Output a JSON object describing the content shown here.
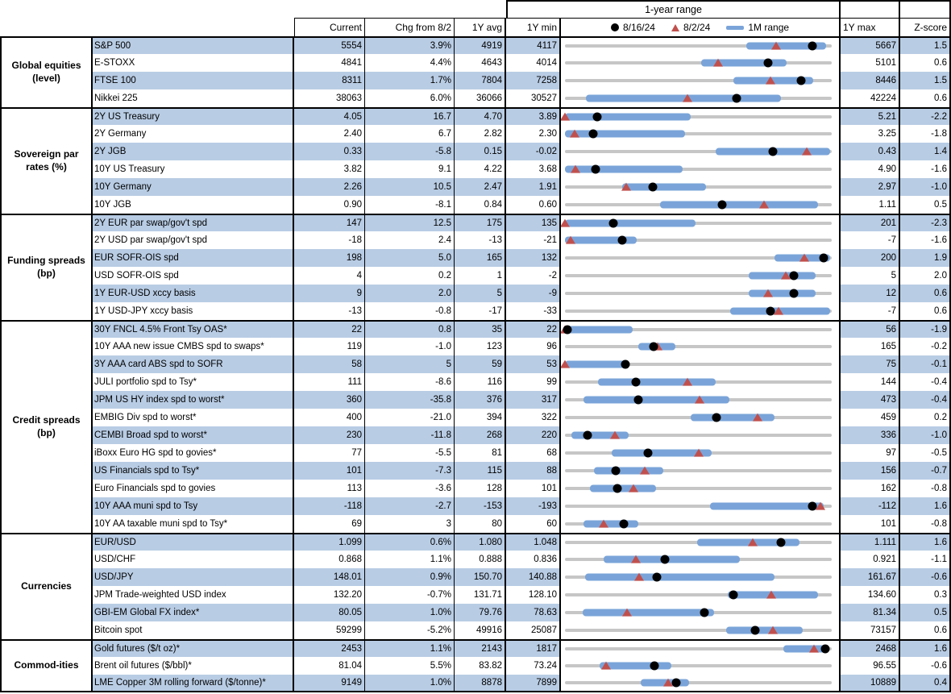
{
  "header": {
    "range_title": "1-year range",
    "columns": {
      "current": "Current",
      "chg": "Chg from 8/2",
      "avg": "1Y avg",
      "min": "1Y min",
      "max": "1Y max",
      "z": "Z-score"
    },
    "legend": [
      {
        "icon": "black-dot",
        "label": "8/16/24"
      },
      {
        "icon": "red-triangle",
        "label": "8/2/24"
      },
      {
        "icon": "blue-bar",
        "label": "1M range"
      }
    ]
  },
  "colors": {
    "stripe": "#b8cce4",
    "bar": "#7aa4d9",
    "triangle": "#c0504d",
    "dot": "#000000",
    "track": "#c6c6c6"
  },
  "chart_data": {
    "type": "table+range-strip",
    "note": "Each row: gray track spans 1Y min..1Y max; blue bar = 1M range; black dot = 8/16/24 level; red triangle = 8/2/24 level. bar/dot/tri are fractions of the 1Y range (0=min, 1=max).",
    "sections": [
      {
        "category": "Global equities (level)",
        "rows": [
          {
            "label": "S&P 500",
            "current": "5554",
            "chg": "3.9%",
            "avg": "4919",
            "min": "4117",
            "max": "5667",
            "z": "1.5",
            "bar": [
              0.68,
              0.98
            ],
            "dot": 0.927,
            "tri": 0.793
          },
          {
            "label": "E-STOXX",
            "current": "4841",
            "chg": "4.4%",
            "avg": "4643",
            "min": "4014",
            "max": "5101",
            "z": "0.6",
            "bar": [
              0.51,
              0.83
            ],
            "dot": 0.761,
            "tri": 0.573
          },
          {
            "label": "FTSE 100",
            "current": "8311",
            "chg": "1.7%",
            "avg": "7804",
            "min": "7258",
            "max": "8446",
            "z": "1.5",
            "bar": [
              0.63,
              0.93
            ],
            "dot": 0.886,
            "tri": 0.769
          },
          {
            "label": "Nikkei 225",
            "current": "38063",
            "chg": "6.0%",
            "avg": "36066",
            "min": "30527",
            "max": "42224",
            "z": "0.6",
            "bar": [
              0.08,
              0.81
            ],
            "dot": 0.644,
            "tri": 0.46
          }
        ]
      },
      {
        "category": "Sovereign par rates (%)",
        "rows": [
          {
            "label": "2Y US Treasury",
            "current": "4.05",
            "chg": "16.7",
            "avg": "4.70",
            "min": "3.89",
            "max": "5.21",
            "z": "-2.2",
            "bar": [
              0.0,
              0.47
            ],
            "dot": 0.121,
            "tri": 0.0
          },
          {
            "label": "2Y Germany",
            "current": "2.40",
            "chg": "6.7",
            "avg": "2.82",
            "min": "2.30",
            "max": "3.25",
            "z": "-1.8",
            "bar": [
              0.0,
              0.45
            ],
            "dot": 0.105,
            "tri": 0.035
          },
          {
            "label": "2Y JGB",
            "current": "0.33",
            "chg": "-5.8",
            "avg": "0.15",
            "min": "-0.02",
            "max": "0.43",
            "z": "1.4",
            "bar": [
              0.565,
              0.995
            ],
            "dot": 0.778,
            "tri": 0.907
          },
          {
            "label": "10Y US Treasury",
            "current": "3.82",
            "chg": "9.1",
            "avg": "4.22",
            "min": "3.68",
            "max": "4.90",
            "z": "-1.6",
            "bar": [
              0.0,
              0.44
            ],
            "dot": 0.115,
            "tri": 0.04
          },
          {
            "label": "10Y Germany",
            "current": "2.26",
            "chg": "10.5",
            "avg": "2.47",
            "min": "1.91",
            "max": "2.97",
            "z": "-1.0",
            "bar": [
              0.215,
              0.53
            ],
            "dot": 0.33,
            "tri": 0.231
          },
          {
            "label": "10Y JGB",
            "current": "0.90",
            "chg": "-8.1",
            "avg": "0.84",
            "min": "0.60",
            "max": "1.11",
            "z": "0.5",
            "bar": [
              0.355,
              0.95
            ],
            "dot": 0.588,
            "tri": 0.747
          }
        ]
      },
      {
        "category": "Funding spreads (bp)",
        "rows": [
          {
            "label": "2Y EUR par swap/gov't spd",
            "current": "147",
            "chg": "12.5",
            "avg": "175",
            "min": "135",
            "max": "201",
            "z": "-2.3",
            "bar": [
              0.0,
              0.49
            ],
            "dot": 0.182,
            "tri": 0.0
          },
          {
            "label": "2Y USD par swap/gov't spd",
            "current": "-18",
            "chg": "2.4",
            "avg": "-13",
            "min": "-21",
            "max": "-7",
            "z": "-1.6",
            "bar": [
              0.0,
              0.27
            ],
            "dot": 0.214,
            "tri": 0.02
          },
          {
            "label": "EUR SOFR-OIS spd",
            "current": "198",
            "chg": "5.0",
            "avg": "165",
            "min": "132",
            "max": "200",
            "z": "1.9",
            "bar": [
              0.785,
              0.995
            ],
            "dot": 0.971,
            "tri": 0.897
          },
          {
            "label": "USD SOFR-OIS spd",
            "current": "4",
            "chg": "0.2",
            "avg": "1",
            "min": "-2",
            "max": "5",
            "z": "2.0",
            "bar": [
              0.69,
              0.94
            ],
            "dot": 0.857,
            "tri": 0.829
          },
          {
            "label": "1Y EUR-USD xccy basis",
            "current": "9",
            "chg": "2.0",
            "avg": "5",
            "min": "-9",
            "max": "12",
            "z": "0.6",
            "bar": [
              0.69,
              0.94
            ],
            "dot": 0.857,
            "tri": 0.762
          },
          {
            "label": "1Y USD-JPY xccy basis",
            "current": "-13",
            "chg": "-0.8",
            "avg": "-17",
            "min": "-33",
            "max": "-7",
            "z": "0.6",
            "bar": [
              0.62,
              0.995
            ],
            "dot": 0.769,
            "tri": 0.8
          }
        ]
      },
      {
        "category": "Credit spreads (bp)",
        "rows": [
          {
            "label": "30Y FNCL 4.5% Front Tsy OAS*",
            "current": "22",
            "chg": "0.8",
            "avg": "35",
            "min": "22",
            "max": "56",
            "z": "-1.9",
            "bar": [
              0.0,
              0.255
            ],
            "dot": 0.01,
            "tri": 0.0
          },
          {
            "label": "10Y AAA new issue CMBS spd to swaps*",
            "current": "119",
            "chg": "-1.0",
            "avg": "123",
            "min": "96",
            "max": "165",
            "z": "-0.2",
            "bar": [
              0.275,
              0.415
            ],
            "dot": 0.333,
            "tri": 0.348
          },
          {
            "label": "3Y AAA card ABS spd to SOFR",
            "current": "58",
            "chg": "5",
            "avg": "59",
            "min": "53",
            "max": "75",
            "z": "-0.1",
            "bar": [
              0.0,
              0.23
            ],
            "dot": 0.227,
            "tri": 0.0
          },
          {
            "label": "JULI portfolio spd to Tsy*",
            "current": "111",
            "chg": "-8.6",
            "avg": "116",
            "min": "99",
            "max": "144",
            "z": "-0.4",
            "bar": [
              0.125,
              0.565
            ],
            "dot": 0.267,
            "tri": 0.458
          },
          {
            "label": "JPM US HY index spd to worst*",
            "current": "360",
            "chg": "-35.8",
            "avg": "376",
            "min": "317",
            "max": "473",
            "z": "-0.4",
            "bar": [
              0.07,
              0.615
            ],
            "dot": 0.276,
            "tri": 0.505
          },
          {
            "label": "EMBIG Div spd to worst*",
            "current": "400",
            "chg": "-21.0",
            "avg": "394",
            "min": "322",
            "max": "459",
            "z": "0.2",
            "bar": [
              0.47,
              0.785
            ],
            "dot": 0.569,
            "tri": 0.723
          },
          {
            "label": "CEMBI Broad spd to worst*",
            "current": "230",
            "chg": "-11.8",
            "avg": "268",
            "min": "220",
            "max": "336",
            "z": "-1.0",
            "bar": [
              0.025,
              0.24
            ],
            "dot": 0.086,
            "tri": 0.188
          },
          {
            "label": "iBoxx Euro HG spd to govies*",
            "current": "77",
            "chg": "-5.5",
            "avg": "81",
            "min": "68",
            "max": "97",
            "z": "-0.5",
            "bar": [
              0.175,
              0.55
            ],
            "dot": 0.31,
            "tri": 0.5
          },
          {
            "label": "US Financials spd to Tsy*",
            "current": "101",
            "chg": "-7.3",
            "avg": "115",
            "min": "88",
            "max": "156",
            "z": "-0.7",
            "bar": [
              0.11,
              0.37
            ],
            "dot": 0.191,
            "tri": 0.299
          },
          {
            "label": "Euro Financials spd to govies",
            "current": "113",
            "chg": "-3.6",
            "avg": "128",
            "min": "101",
            "max": "162",
            "z": "-0.8",
            "bar": [
              0.095,
              0.34
            ],
            "dot": 0.197,
            "tri": 0.256
          },
          {
            "label": "10Y AAA muni spd to Tsy",
            "current": "-118",
            "chg": "-2.7",
            "avg": "-153",
            "min": "-193",
            "max": "-112",
            "z": "1.6",
            "bar": [
              0.545,
              0.97
            ],
            "dot": 0.926,
            "tri": 0.959
          },
          {
            "label": "10Y AA taxable muni spd to Tsy*",
            "current": "69",
            "chg": "3",
            "avg": "80",
            "min": "60",
            "max": "101",
            "z": "-0.8",
            "bar": [
              0.07,
              0.275
            ],
            "dot": 0.22,
            "tri": 0.146
          }
        ]
      },
      {
        "category": "Currencies",
        "rows": [
          {
            "label": "EUR/USD",
            "current": "1.099",
            "chg": "0.6%",
            "avg": "1.080",
            "min": "1.048",
            "max": "1.111",
            "z": "1.6",
            "bar": [
              0.495,
              0.88
            ],
            "dot": 0.81,
            "tri": 0.705
          },
          {
            "label": "USD/CHF",
            "current": "0.868",
            "chg": "1.1%",
            "avg": "0.888",
            "min": "0.836",
            "max": "0.921",
            "z": "-1.1",
            "bar": [
              0.145,
              0.655
            ],
            "dot": 0.376,
            "tri": 0.266
          },
          {
            "label": "USD/JPY",
            "current": "148.01",
            "chg": "0.9%",
            "avg": "150.70",
            "min": "140.88",
            "max": "161.67",
            "z": "-0.6",
            "bar": [
              0.075,
              0.785
            ],
            "dot": 0.343,
            "tri": 0.279
          },
          {
            "label": "JPM Trade-weighted USD index",
            "current": "132.20",
            "chg": "-0.7%",
            "avg": "131.71",
            "min": "128.10",
            "max": "134.60",
            "z": "0.3",
            "bar": [
              0.61,
              0.95
            ],
            "dot": 0.631,
            "tri": 0.774
          },
          {
            "label": "GBI-EM Global FX index*",
            "current": "80.05",
            "chg": "1.0%",
            "avg": "79.76",
            "min": "78.63",
            "max": "81.34",
            "z": "0.5",
            "bar": [
              0.065,
              0.56
            ],
            "dot": 0.524,
            "tri": 0.232
          },
          {
            "label": "Bitcoin spot",
            "current": "59299",
            "chg": "-5.2%",
            "avg": "49916",
            "min": "25087",
            "max": "73157",
            "z": "0.6",
            "bar": [
              0.605,
              0.89
            ],
            "dot": 0.712,
            "tri": 0.779
          }
        ]
      },
      {
        "category": "Commod-ities",
        "rows": [
          {
            "label": "Gold futures ($/t oz)*",
            "current": "2453",
            "chg": "1.1%",
            "avg": "2143",
            "min": "1817",
            "max": "2468",
            "z": "1.6",
            "bar": [
              0.82,
              0.99
            ],
            "dot": 0.977,
            "tri": 0.935
          },
          {
            "label": "Brent oil futures ($/bbl)*",
            "current": "81.04",
            "chg": "5.5%",
            "avg": "83.82",
            "min": "73.24",
            "max": "96.55",
            "z": "-0.6",
            "bar": [
              0.13,
              0.4
            ],
            "dot": 0.335,
            "tri": 0.154
          },
          {
            "label": "LME Copper 3M rolling forward ($/tonne)*",
            "current": "9149",
            "chg": "1.0%",
            "avg": "8878",
            "min": "7899",
            "max": "10889",
            "z": "0.4",
            "bar": [
              0.285,
              0.465
            ],
            "dot": 0.418,
            "tri": 0.388
          }
        ]
      }
    ]
  }
}
